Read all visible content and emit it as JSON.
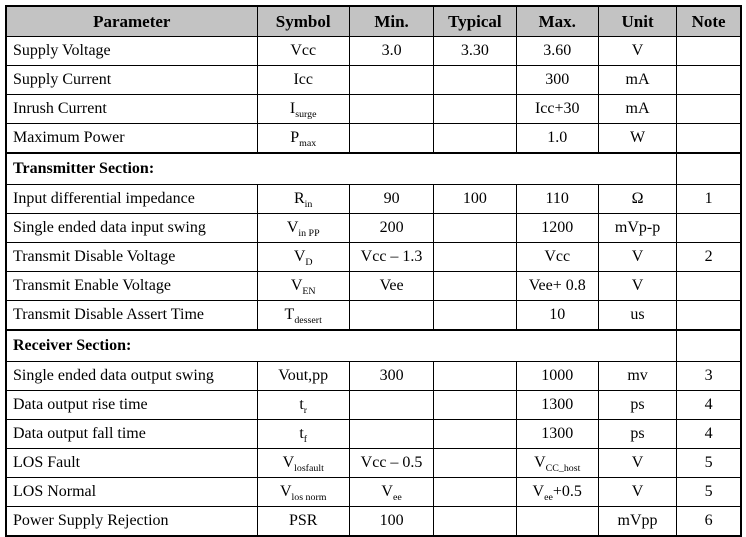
{
  "styles": {
    "header_bg": "#c3c3c3",
    "border_color": "#000000",
    "text_color": "#000000"
  },
  "header": {
    "keys": [
      "parameter",
      "symbol",
      "min",
      "typical",
      "max",
      "unit",
      "note"
    ],
    "columns": [
      "Parameter",
      "Symbol",
      "Min.",
      "Typical",
      "Max.",
      "Unit",
      "Note"
    ]
  },
  "rows": [
    {
      "type": "data",
      "cells": [
        [
          {
            "t": "Supply Voltage"
          }
        ],
        [
          {
            "t": "Vcc"
          }
        ],
        [
          {
            "t": "3.0"
          }
        ],
        [
          {
            "t": "3.30"
          }
        ],
        [
          {
            "t": "3.60"
          }
        ],
        [
          {
            "t": "V"
          }
        ],
        []
      ]
    },
    {
      "type": "data",
      "cells": [
        [
          {
            "t": "Supply Current"
          }
        ],
        [
          {
            "t": "Icc"
          }
        ],
        [],
        [],
        [
          {
            "t": "300"
          }
        ],
        [
          {
            "t": "mA"
          }
        ],
        []
      ]
    },
    {
      "type": "data",
      "cells": [
        [
          {
            "t": "Inrush Current"
          }
        ],
        [
          {
            "t": "I"
          },
          {
            "t": "surge",
            "sub": true
          }
        ],
        [],
        [],
        [
          {
            "t": "Icc+30"
          }
        ],
        [
          {
            "t": "mA"
          }
        ],
        []
      ]
    },
    {
      "type": "data",
      "cells": [
        [
          {
            "t": "Maximum Power"
          }
        ],
        [
          {
            "t": "P"
          },
          {
            "t": "max",
            "sub": true
          }
        ],
        [],
        [],
        [
          {
            "t": "1.0"
          }
        ],
        [
          {
            "t": "W"
          }
        ],
        []
      ]
    },
    {
      "type": "section",
      "label": "Transmitter Section:"
    },
    {
      "type": "data",
      "cells": [
        [
          {
            "t": "Input differential impedance"
          }
        ],
        [
          {
            "t": "R"
          },
          {
            "t": "in",
            "sub": true
          }
        ],
        [
          {
            "t": "90"
          }
        ],
        [
          {
            "t": "100"
          }
        ],
        [
          {
            "t": "110"
          }
        ],
        [
          {
            "t": "Ω"
          }
        ],
        [
          {
            "t": "1"
          }
        ]
      ]
    },
    {
      "type": "data",
      "cells": [
        [
          {
            "t": "Single ended data input swing"
          }
        ],
        [
          {
            "t": "V"
          },
          {
            "t": "in PP",
            "sub": true
          }
        ],
        [
          {
            "t": "200"
          }
        ],
        [],
        [
          {
            "t": "1200"
          }
        ],
        [
          {
            "t": "mVp-p"
          }
        ],
        []
      ]
    },
    {
      "type": "data",
      "cells": [
        [
          {
            "t": "Transmit Disable Voltage"
          }
        ],
        [
          {
            "t": "V"
          },
          {
            "t": "D",
            "sub": true
          }
        ],
        [
          {
            "t": "Vcc – 1.3"
          }
        ],
        [],
        [
          {
            "t": "Vcc"
          }
        ],
        [
          {
            "t": "V"
          }
        ],
        [
          {
            "t": "2"
          }
        ]
      ]
    },
    {
      "type": "data",
      "cells": [
        [
          {
            "t": "Transmit Enable Voltage"
          }
        ],
        [
          {
            "t": "V"
          },
          {
            "t": "EN",
            "sub": true
          }
        ],
        [
          {
            "t": "Vee"
          }
        ],
        [],
        [
          {
            "t": "Vee+ 0.8"
          }
        ],
        [
          {
            "t": "V"
          }
        ],
        []
      ]
    },
    {
      "type": "data",
      "cells": [
        [
          {
            "t": "Transmit Disable Assert Time"
          }
        ],
        [
          {
            "t": "T"
          },
          {
            "t": "dessert",
            "sub": true
          }
        ],
        [],
        [],
        [
          {
            "t": "10"
          }
        ],
        [
          {
            "t": "us"
          }
        ],
        []
      ]
    },
    {
      "type": "section",
      "label": "Receiver Section:"
    },
    {
      "type": "data",
      "cells": [
        [
          {
            "t": "Single ended data output swing"
          }
        ],
        [
          {
            "t": "Vout,pp"
          }
        ],
        [
          {
            "t": "300"
          }
        ],
        [],
        [
          {
            "t": "1000"
          }
        ],
        [
          {
            "t": "mv"
          }
        ],
        [
          {
            "t": "3"
          }
        ]
      ]
    },
    {
      "type": "data",
      "cells": [
        [
          {
            "t": "Data output rise time"
          }
        ],
        [
          {
            "t": "t"
          },
          {
            "t": "r",
            "sub": true
          }
        ],
        [],
        [],
        [
          {
            "t": "1300"
          }
        ],
        [
          {
            "t": "ps"
          }
        ],
        [
          {
            "t": "4"
          }
        ]
      ]
    },
    {
      "type": "data",
      "cells": [
        [
          {
            "t": "Data output fall time"
          }
        ],
        [
          {
            "t": "t"
          },
          {
            "t": "f",
            "sub": true
          }
        ],
        [],
        [],
        [
          {
            "t": "1300"
          }
        ],
        [
          {
            "t": "ps"
          }
        ],
        [
          {
            "t": "4"
          }
        ]
      ]
    },
    {
      "type": "data",
      "cells": [
        [
          {
            "t": "LOS Fault"
          }
        ],
        [
          {
            "t": "V"
          },
          {
            "t": "losfault",
            "sub": true
          }
        ],
        [
          {
            "t": "Vcc – 0.5"
          }
        ],
        [],
        [
          {
            "t": "V"
          },
          {
            "t": "CC_host",
            "sub": true
          }
        ],
        [
          {
            "t": "V"
          }
        ],
        [
          {
            "t": "5"
          }
        ]
      ]
    },
    {
      "type": "data",
      "cells": [
        [
          {
            "t": "LOS Normal"
          }
        ],
        [
          {
            "t": "V"
          },
          {
            "t": "los norm",
            "sub": true
          }
        ],
        [
          {
            "t": "V"
          },
          {
            "t": "ee",
            "sub": true
          }
        ],
        [],
        [
          {
            "t": "V"
          },
          {
            "t": "ee",
            "sub": true
          },
          {
            "t": "+0.5"
          }
        ],
        [
          {
            "t": "V"
          }
        ],
        [
          {
            "t": "5"
          }
        ]
      ]
    },
    {
      "type": "data",
      "cells": [
        [
          {
            "t": "Power Supply Rejection"
          }
        ],
        [
          {
            "t": "PSR"
          }
        ],
        [
          {
            "t": "100"
          }
        ],
        [],
        [],
        [
          {
            "t": "mVpp"
          }
        ],
        [
          {
            "t": "6"
          }
        ]
      ]
    }
  ]
}
